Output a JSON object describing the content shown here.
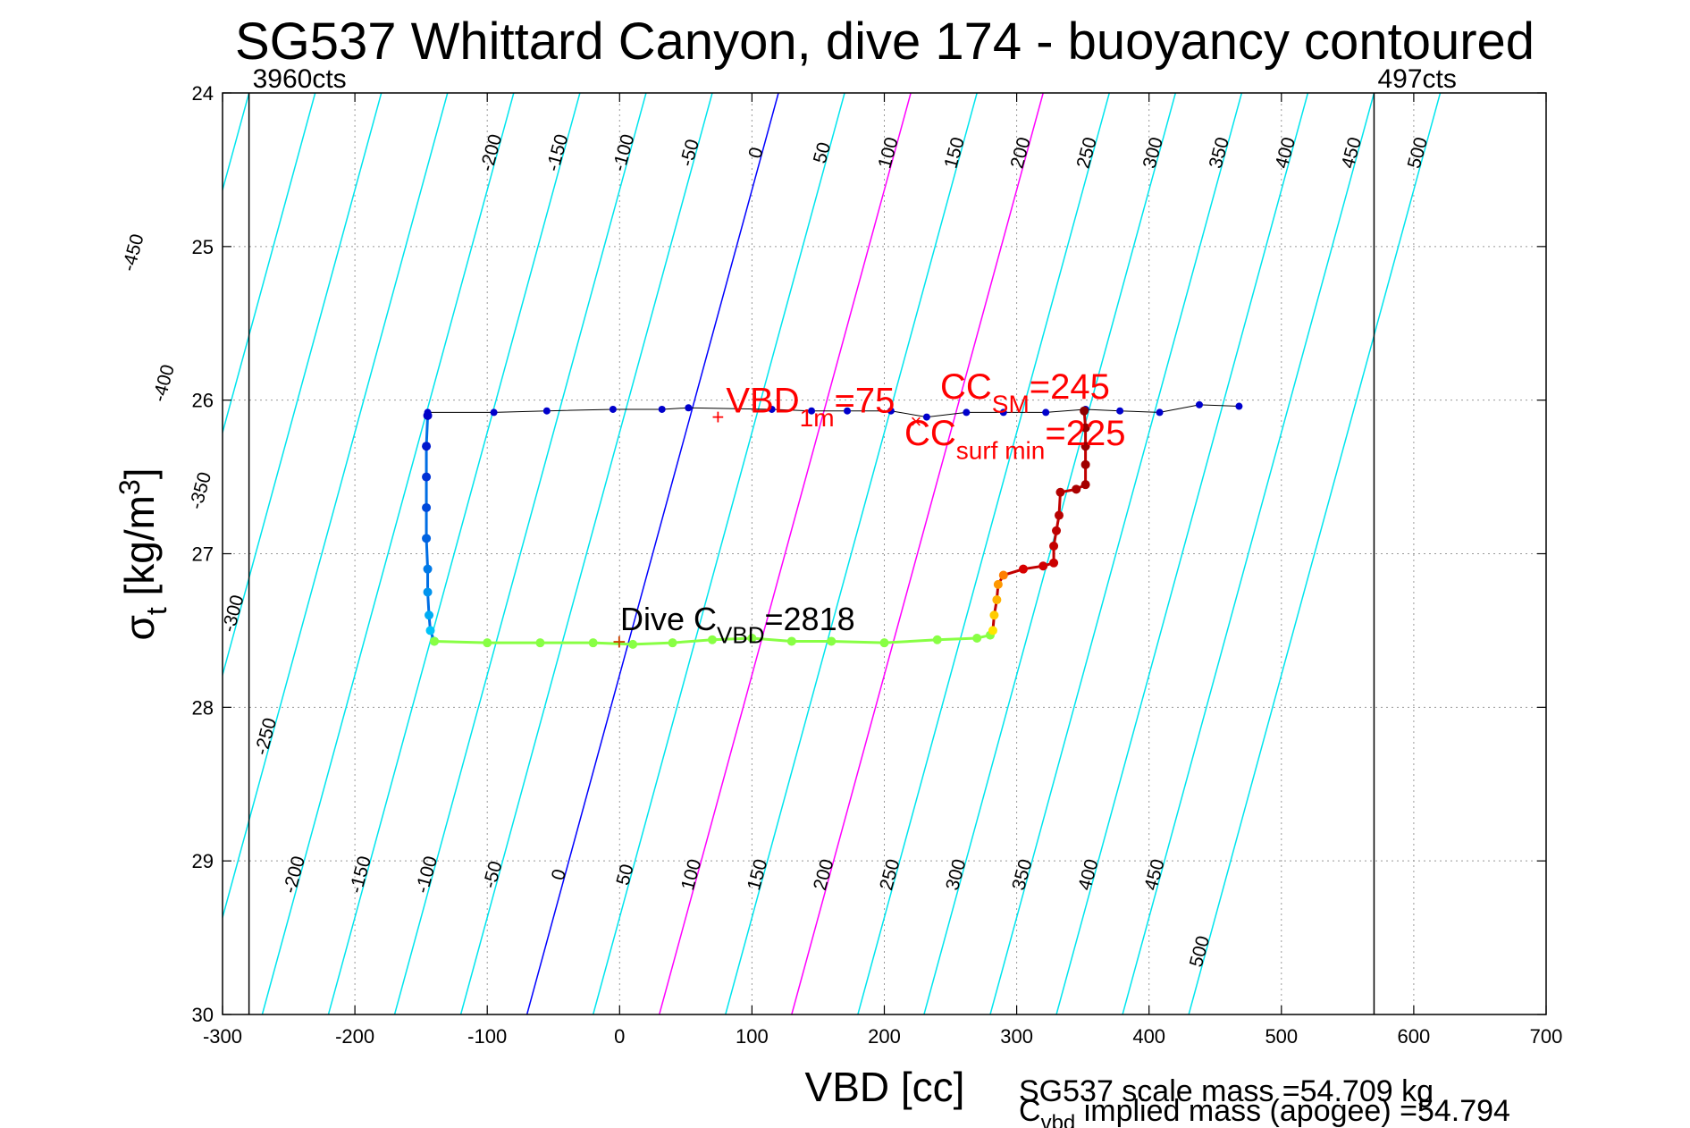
{
  "chart_data": {
    "type": "scatter",
    "title": "SG537 Whittard Canyon, dive 174 - buoyancy contoured",
    "xlabel": "VBD [cc]",
    "ylabel_main": "σ",
    "ylabel_sub": "t",
    "ylabel_rest": " [kg/m",
    "ylabel_sup": "3",
    "ylabel_close": "]",
    "xlim": [
      -300,
      700
    ],
    "ylim": [
      30,
      24
    ],
    "xticks": [
      -300,
      -200,
      -100,
      0,
      100,
      200,
      300,
      400,
      500,
      600,
      700
    ],
    "yticks": [
      24,
      25,
      26,
      27,
      28,
      29,
      30
    ],
    "grid": true,
    "vlines": [
      {
        "x": -280,
        "label": "3960cts"
      },
      {
        "x": 570,
        "label": "497cts"
      }
    ],
    "buoyancy_contours": {
      "levels": [
        -450,
        -400,
        -350,
        -300,
        -250,
        -200,
        -150,
        -100,
        -50,
        0,
        50,
        100,
        150,
        200,
        250,
        300,
        350,
        400,
        450,
        500
      ],
      "x_at_sigma30": [
        -520,
        -470,
        -420,
        -370,
        -320,
        -270,
        -220,
        -170,
        -120,
        -70,
        -20,
        30,
        80,
        130,
        180,
        230,
        280,
        330,
        380,
        430
      ],
      "x_at_sigma24": [
        -330,
        -280,
        -230,
        -180,
        -130,
        -80,
        -30,
        20,
        70,
        120,
        170,
        220,
        270,
        320,
        370,
        420,
        470,
        520,
        570,
        620
      ],
      "zero_color": "#0000ff",
      "highlight_levels": [
        100,
        200
      ],
      "highlight_color": "#ff00ff",
      "color": "#00e5ee",
      "top_labels": [
        "-200",
        "-150",
        "-100",
        "-50",
        "0",
        "50",
        "100",
        "150",
        "200",
        "250",
        "300",
        "350",
        "400",
        "450",
        "500"
      ],
      "bottom_labels": [
        "-200",
        "-150",
        "-100",
        "-50",
        "0",
        "50",
        "100",
        "150",
        "200",
        "250",
        "300",
        "350",
        "400",
        "450",
        "500"
      ],
      "left_labels": [
        "-450",
        "-400",
        "-350",
        "-300",
        "-250"
      ]
    },
    "series": [
      {
        "name": "climb",
        "color": "#0000cc",
        "points": [
          [
            -145,
            26.08
          ],
          [
            -95,
            26.08
          ],
          [
            -55,
            26.07
          ],
          [
            -5,
            26.06
          ],
          [
            32,
            26.06
          ],
          [
            52,
            26.05
          ],
          [
            115,
            26.06
          ],
          [
            145,
            26.07
          ],
          [
            172,
            26.07
          ],
          [
            205,
            26.07
          ],
          [
            232,
            26.11
          ],
          [
            262,
            26.08
          ],
          [
            290,
            26.08
          ],
          [
            322,
            26.08
          ],
          [
            352,
            26.06
          ],
          [
            378,
            26.07
          ],
          [
            408,
            26.08
          ],
          [
            438,
            26.03
          ],
          [
            468,
            26.04
          ]
        ]
      },
      {
        "name": "descent_left",
        "color": "gradient-blue-cyan",
        "points": [
          [
            -145,
            26.1
          ],
          [
            -146,
            26.3
          ],
          [
            -146,
            26.5
          ],
          [
            -146,
            26.7
          ],
          [
            -146,
            26.9
          ],
          [
            -145,
            27.1
          ],
          [
            -145,
            27.25
          ],
          [
            -144,
            27.4
          ],
          [
            -143,
            27.5
          ],
          [
            -140,
            27.57
          ]
        ]
      },
      {
        "name": "deep",
        "color": "#88ff44",
        "points": [
          [
            -140,
            27.57
          ],
          [
            -100,
            27.58
          ],
          [
            -60,
            27.58
          ],
          [
            -20,
            27.58
          ],
          [
            10,
            27.59
          ],
          [
            40,
            27.58
          ],
          [
            70,
            27.56
          ],
          [
            100,
            27.55
          ],
          [
            130,
            27.57
          ],
          [
            160,
            27.57
          ],
          [
            200,
            27.58
          ],
          [
            240,
            27.56
          ],
          [
            270,
            27.55
          ],
          [
            280,
            27.53
          ]
        ]
      },
      {
        "name": "ascent_right",
        "color": "gradient-yellow-red",
        "points": [
          [
            282,
            27.5
          ],
          [
            283,
            27.4
          ],
          [
            285,
            27.3
          ],
          [
            286,
            27.2
          ],
          [
            290,
            27.14
          ],
          [
            305,
            27.1
          ],
          [
            320,
            27.08
          ],
          [
            328,
            27.06
          ],
          [
            328,
            26.95
          ],
          [
            330,
            26.85
          ],
          [
            332,
            26.75
          ],
          [
            333,
            26.6
          ],
          [
            345,
            26.58
          ],
          [
            352,
            26.55
          ],
          [
            352,
            26.42
          ],
          [
            352,
            26.3
          ],
          [
            352,
            26.18
          ],
          [
            351,
            26.07
          ]
        ]
      }
    ],
    "annotations": [
      {
        "x": 75,
        "y": 26.11,
        "marker": "+",
        "main": "VBD",
        "sub": "1m",
        "rest": "=75"
      },
      {
        "x": 225,
        "y": 26.1,
        "marker": "x",
        "main": "CC",
        "sub": "SM",
        "rest": "=245"
      },
      {
        "x": 225,
        "y": 26.1,
        "main": "CC",
        "sub": "surf min",
        "rest": "=225"
      },
      {
        "x": 0,
        "y": 27.58,
        "marker": "+",
        "main": "Dive C",
        "sub": "VBD",
        "rest": "=2818"
      }
    ],
    "footer": {
      "line1": "SG537 scale mass =54.709 kg",
      "line2_main": "C",
      "line2_sub": "vbd",
      "line2_rest": " implied mass (apogee) =54.794"
    }
  },
  "colors": {
    "annotation": "#ff0000",
    "axis": "#000000",
    "grid": "#888888"
  }
}
